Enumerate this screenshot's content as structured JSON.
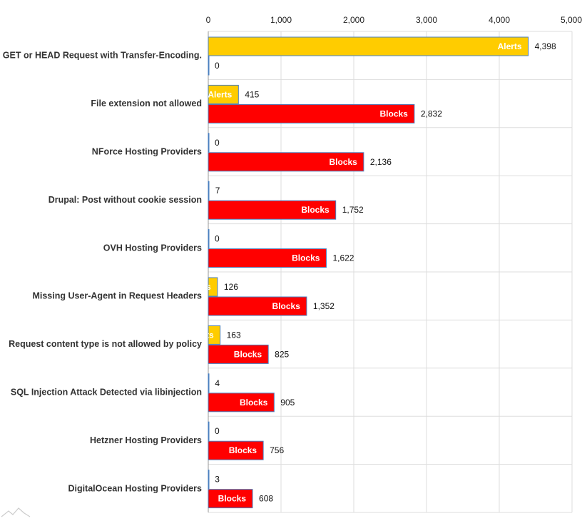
{
  "chart_data": {
    "type": "bar",
    "orientation": "horizontal",
    "categories": [
      "GET or HEAD Request with Transfer-Encoding.",
      "File extension not allowed",
      "NForce Hosting Providers",
      "Drupal: Post without cookie session",
      "OVH Hosting Providers",
      "Missing User-Agent in Request Headers",
      "Request content type is not allowed by policy",
      "SQL Injection Attack Detected via libinjection",
      "Hetzner Hosting Providers",
      "DigitalOcean Hosting Providers"
    ],
    "series": [
      {
        "name": "Alerts",
        "color": "#ffcc00",
        "values": [
          4398,
          415,
          0,
          7,
          0,
          126,
          163,
          4,
          0,
          3
        ],
        "value_labels": [
          "4,398",
          "415",
          "0",
          "7",
          "0",
          "126",
          "163",
          "4",
          "0",
          "3"
        ]
      },
      {
        "name": "Blocks",
        "color": "#ff0000",
        "values": [
          0,
          2832,
          2136,
          1752,
          1622,
          1352,
          825,
          905,
          756,
          608
        ],
        "value_labels": [
          "0",
          "2,832",
          "2,136",
          "1,752",
          "1,622",
          "1,352",
          "825",
          "905",
          "756",
          "608"
        ]
      }
    ],
    "xlim": [
      0,
      5000
    ],
    "x_ticks": [
      0,
      1000,
      2000,
      3000,
      4000,
      5000
    ],
    "x_tick_labels": [
      "0",
      "1,000",
      "2,000",
      "3,000",
      "4,000",
      "5,000"
    ],
    "axis_position": "top",
    "grid": true,
    "title": "",
    "xlabel": "",
    "ylabel": ""
  },
  "colors": {
    "grid": "#dddddd",
    "axis": "#999999",
    "bar_stroke": "#4a7fbf"
  }
}
